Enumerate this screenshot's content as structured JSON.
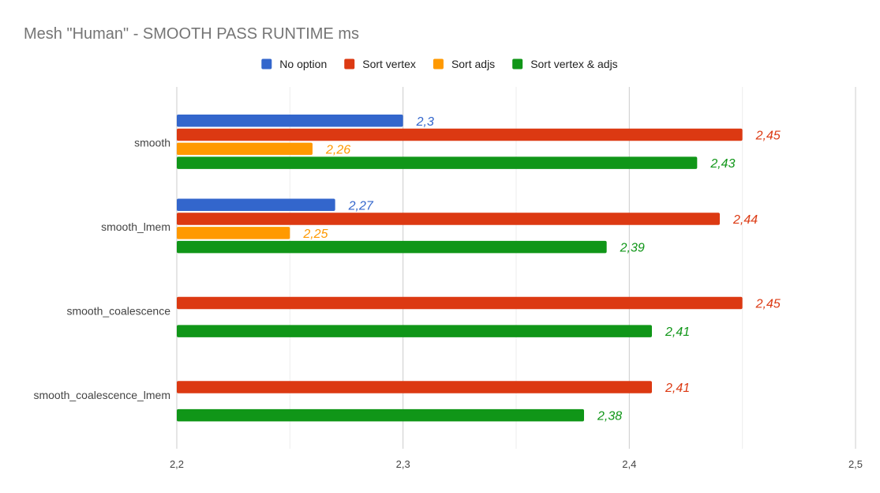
{
  "chart_data": {
    "type": "bar",
    "orientation": "horizontal",
    "title": "Mesh \"Human\" - SMOOTH PASS RUNTIME ms",
    "categories": [
      "smooth",
      "smooth_lmem",
      "smooth_coalescence",
      "smooth_coalescence_lmem"
    ],
    "series": [
      {
        "name": "No option",
        "color": "#3366cc",
        "values": [
          2.3,
          2.27,
          null,
          null
        ],
        "labels": [
          "2,3",
          "2,27",
          "",
          ""
        ]
      },
      {
        "name": "Sort vertex",
        "color": "#dc3912",
        "values": [
          2.45,
          2.44,
          2.45,
          2.41
        ],
        "labels": [
          "2,45",
          "2,44",
          "2,45",
          "2,41"
        ]
      },
      {
        "name": "Sort adjs",
        "color": "#ff9900",
        "values": [
          2.26,
          2.25,
          null,
          null
        ],
        "labels": [
          "2,26",
          "2,25",
          "",
          ""
        ]
      },
      {
        "name": "Sort vertex & adjs",
        "color": "#109618",
        "values": [
          2.43,
          2.39,
          2.41,
          2.38
        ],
        "labels": [
          "2,43",
          "2,39",
          "2,41",
          "2,38"
        ]
      }
    ],
    "xlim": [
      2.2,
      2.5
    ],
    "xticks": [
      {
        "value": 2.2,
        "label": "2,2"
      },
      {
        "value": 2.3,
        "label": "2,3"
      },
      {
        "value": 2.4,
        "label": "2,4"
      },
      {
        "value": 2.5,
        "label": "2,5"
      }
    ],
    "minor_gridlines": [
      2.25,
      2.35,
      2.45
    ],
    "legend_position": "top",
    "grid": true
  }
}
